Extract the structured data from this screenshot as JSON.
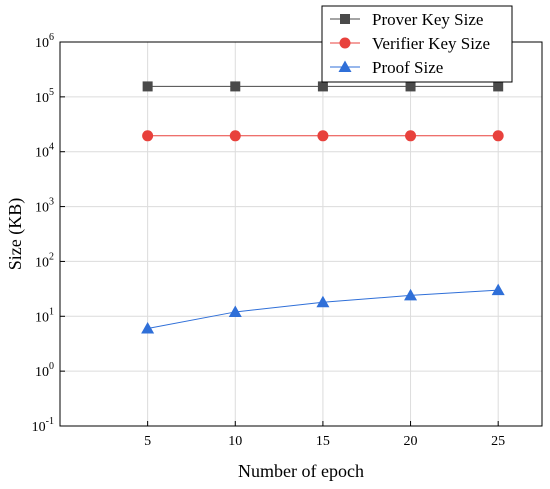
{
  "chart_data": {
    "type": "line",
    "xlabel": "Number of epoch",
    "ylabel": "Size (KB)",
    "x": [
      5,
      10,
      15,
      20,
      25
    ],
    "xlim": [
      0,
      27.5
    ],
    "ylim_log10": [
      -1,
      6
    ],
    "y_scale": "log",
    "y_ticks": [
      {
        "base": "10",
        "exp": "-1"
      },
      {
        "base": "10",
        "exp": "0"
      },
      {
        "base": "10",
        "exp": "1"
      },
      {
        "base": "10",
        "exp": "2"
      },
      {
        "base": "10",
        "exp": "3"
      },
      {
        "base": "10",
        "exp": "4"
      },
      {
        "base": "10",
        "exp": "5"
      },
      {
        "base": "10",
        "exp": "6"
      }
    ],
    "x_ticks": [
      "5",
      "10",
      "15",
      "20",
      "25"
    ],
    "grid": true,
    "legend_position": "top-right",
    "series": [
      {
        "name": "Prover Key Size",
        "color": "#4a4a4a",
        "marker": "square",
        "values": [
          155000,
          155000,
          155000,
          155000,
          155000
        ]
      },
      {
        "name": "Verifier Key Size",
        "color": "#e8413c",
        "marker": "circle",
        "values": [
          19500,
          19500,
          19500,
          19500,
          19500
        ]
      },
      {
        "name": "Proof Size",
        "color": "#2f6fd8",
        "marker": "triangle",
        "values": [
          6,
          12,
          18,
          24,
          30
        ]
      }
    ]
  }
}
